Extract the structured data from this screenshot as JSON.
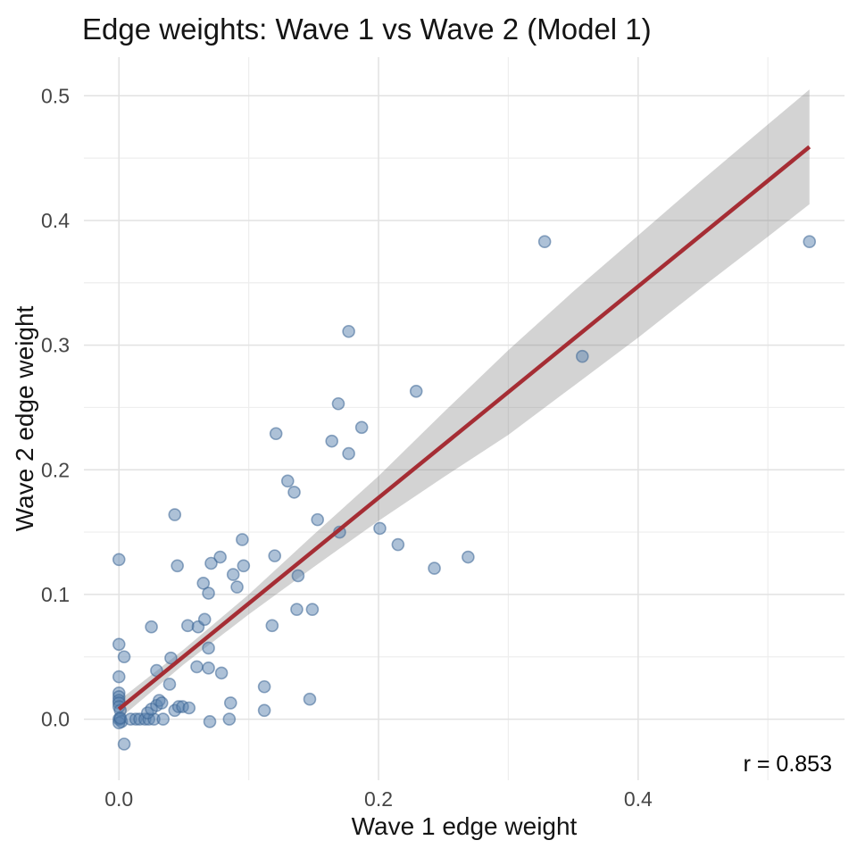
{
  "chart_data": {
    "type": "scatter",
    "title": "Edge weights: Wave 1 vs Wave 2 (Model 1)",
    "xlabel": "Wave 1 edge weight",
    "ylabel": "Wave 2 edge weight",
    "annotation": {
      "text": "r = 0.853",
      "position": "bottom-right"
    },
    "legend": false,
    "grid": true,
    "xlim": [
      -0.027,
      0.559
    ],
    "ylim": [
      -0.049,
      0.531
    ],
    "x_tick_values": [
      0.0,
      0.2,
      0.4
    ],
    "x_tick_labels": [
      "0.0",
      "0.2",
      "0.4"
    ],
    "y_tick_values": [
      0.0,
      0.1,
      0.2,
      0.3,
      0.4,
      0.5
    ],
    "y_tick_labels": [
      "0.0",
      "0.1",
      "0.2",
      "0.3",
      "0.4",
      "0.5"
    ],
    "x_minor_values": [
      0.1,
      0.3,
      0.5
    ],
    "y_minor_values": [
      0.05,
      0.15,
      0.25,
      0.35,
      0.45
    ],
    "points": [
      [
        0.0,
        0.128
      ],
      [
        0.0,
        0.06
      ],
      [
        0.004,
        0.05
      ],
      [
        0.0,
        0.034
      ],
      [
        0.0,
        0.021
      ],
      [
        0.0,
        0.018
      ],
      [
        0.0,
        0.015
      ],
      [
        0.0,
        0.013
      ],
      [
        0.0,
        0.01
      ],
      [
        0.001,
        0.007
      ],
      [
        0.0,
        0.0
      ],
      [
        0.001,
        0.0
      ],
      [
        0.002,
        -0.002
      ],
      [
        0.0,
        -0.003
      ],
      [
        0.001,
        0.001
      ],
      [
        0.004,
        -0.02
      ],
      [
        0.009,
        0.0
      ],
      [
        0.013,
        0.0
      ],
      [
        0.016,
        0.0
      ],
      [
        0.02,
        0.0
      ],
      [
        0.023,
        0.0
      ],
      [
        0.027,
        0.0
      ],
      [
        0.034,
        0.0
      ],
      [
        0.07,
        -0.002
      ],
      [
        0.085,
        0.0
      ],
      [
        0.022,
        0.005
      ],
      [
        0.025,
        0.008
      ],
      [
        0.029,
        0.011
      ],
      [
        0.031,
        0.015
      ],
      [
        0.033,
        0.013
      ],
      [
        0.043,
        0.007
      ],
      [
        0.046,
        0.01
      ],
      [
        0.049,
        0.01
      ],
      [
        0.054,
        0.009
      ],
      [
        0.029,
        0.039
      ],
      [
        0.039,
        0.028
      ],
      [
        0.04,
        0.049
      ],
      [
        0.06,
        0.042
      ],
      [
        0.069,
        0.041
      ],
      [
        0.079,
        0.037
      ],
      [
        0.086,
        0.013
      ],
      [
        0.112,
        0.007
      ],
      [
        0.112,
        0.026
      ],
      [
        0.147,
        0.016
      ],
      [
        0.025,
        0.074
      ],
      [
        0.053,
        0.075
      ],
      [
        0.061,
        0.074
      ],
      [
        0.066,
        0.08
      ],
      [
        0.069,
        0.057
      ],
      [
        0.069,
        0.101
      ],
      [
        0.091,
        0.106
      ],
      [
        0.065,
        0.109
      ],
      [
        0.088,
        0.116
      ],
      [
        0.118,
        0.075
      ],
      [
        0.137,
        0.088
      ],
      [
        0.149,
        0.088
      ],
      [
        0.138,
        0.115
      ],
      [
        0.12,
        0.131
      ],
      [
        0.095,
        0.144
      ],
      [
        0.096,
        0.123
      ],
      [
        0.071,
        0.125
      ],
      [
        0.078,
        0.13
      ],
      [
        0.045,
        0.123
      ],
      [
        0.043,
        0.164
      ],
      [
        0.121,
        0.229
      ],
      [
        0.13,
        0.191
      ],
      [
        0.135,
        0.182
      ],
      [
        0.153,
        0.16
      ],
      [
        0.17,
        0.15
      ],
      [
        0.164,
        0.223
      ],
      [
        0.169,
        0.253
      ],
      [
        0.177,
        0.213
      ],
      [
        0.187,
        0.234
      ],
      [
        0.177,
        0.311
      ],
      [
        0.201,
        0.153
      ],
      [
        0.215,
        0.14
      ],
      [
        0.243,
        0.121
      ],
      [
        0.269,
        0.13
      ],
      [
        0.229,
        0.263
      ],
      [
        0.328,
        0.383
      ],
      [
        0.357,
        0.291
      ],
      [
        0.532,
        0.383
      ]
    ],
    "regression_line": {
      "x": [
        0.0,
        0.532
      ],
      "y": [
        0.008,
        0.459
      ]
    },
    "ci_band": {
      "x": [
        0.0,
        0.05,
        0.1,
        0.15,
        0.2,
        0.25,
        0.3,
        0.35,
        0.4,
        0.45,
        0.5,
        0.532
      ],
      "upper": [
        0.015,
        0.056,
        0.1,
        0.148,
        0.195,
        0.246,
        0.296,
        0.343,
        0.388,
        0.433,
        0.477,
        0.505
      ],
      "lower": [
        0.0,
        0.044,
        0.084,
        0.122,
        0.159,
        0.194,
        0.228,
        0.267,
        0.306,
        0.347,
        0.387,
        0.413
      ]
    },
    "colors": {
      "point_fill": "#5c84b0",
      "point_stroke": "#3a6494",
      "line": "#a52d34",
      "band": "#6e6e6e",
      "grid_major": "#e2e2e2",
      "grid_minor": "#eeeeee",
      "tick_text": "#464646",
      "title_text": "#141414"
    }
  }
}
